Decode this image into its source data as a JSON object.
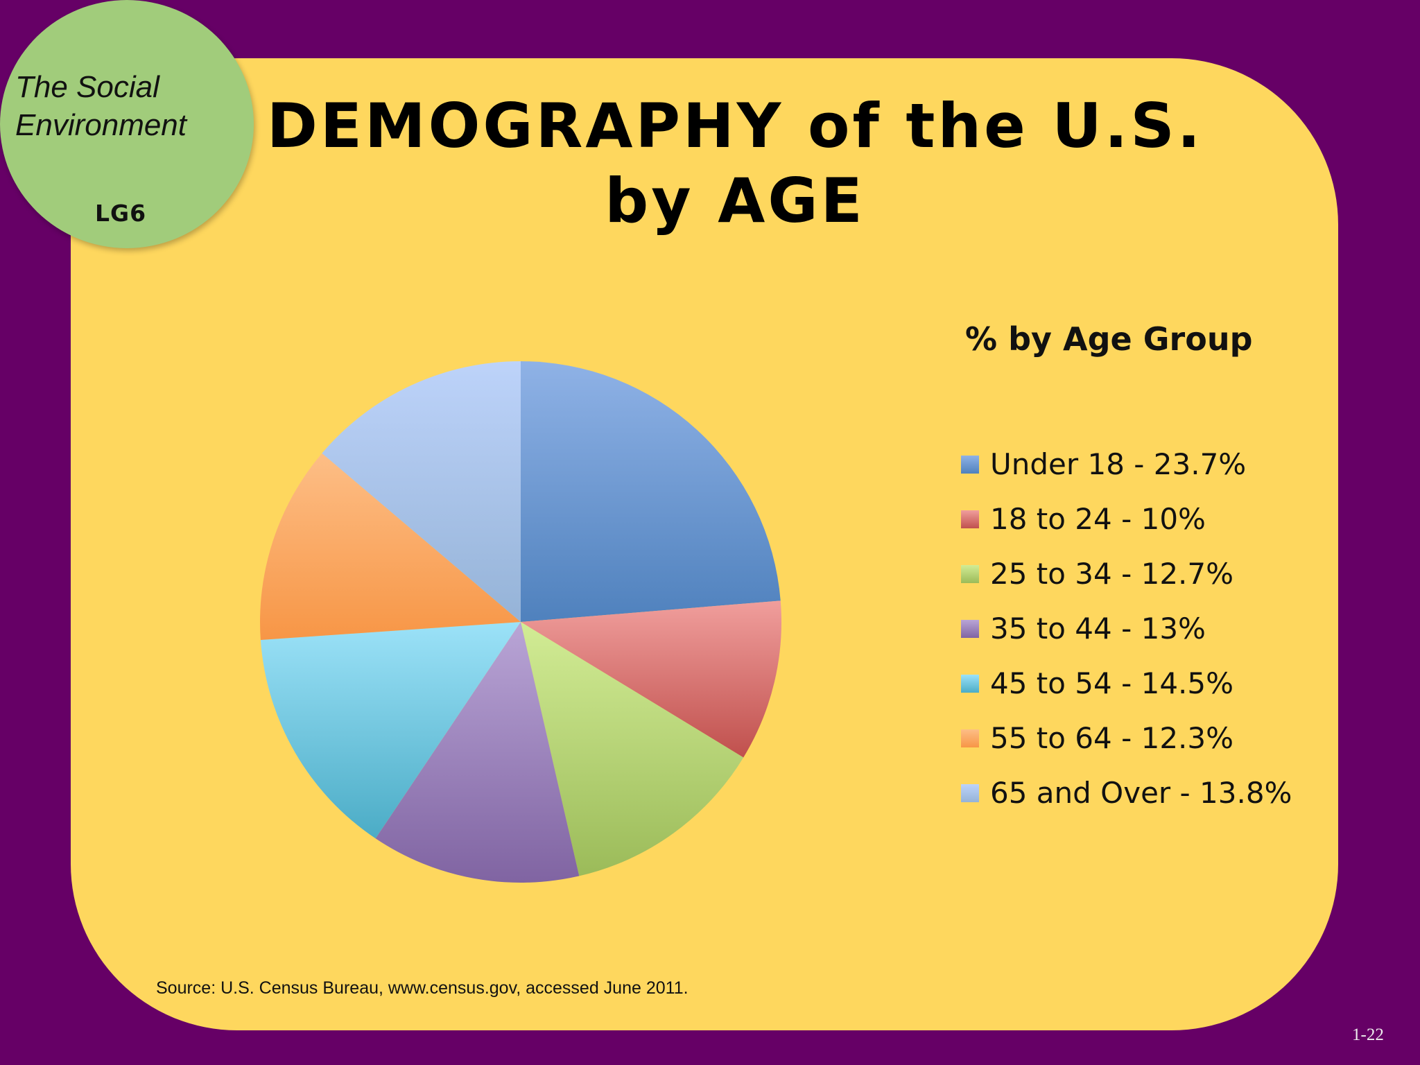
{
  "slide": {
    "title": "DEMOGRAPHY of the U.S. by AGE",
    "topic": "The Social\nEnvironment",
    "learning_goal": "LG6",
    "source": "Source: U.S. Census Bureau, www.census.gov, accessed June 2011.",
    "slide_number": "1-22"
  },
  "colors": {
    "background": "#660066",
    "panel": "#FED75E",
    "badge": "#A1CC7B"
  },
  "chart_data": {
    "type": "pie",
    "title": "% by Age Group",
    "legend_position": "right",
    "start": "12 o'clock",
    "direction": "clockwise",
    "slices": [
      {
        "label": "Under 18",
        "legend": "Under 18 - 23.7%",
        "value": 23.7,
        "color": "#4F81BD",
        "light": "#8FB2E6"
      },
      {
        "label": "18 to 24",
        "legend": "18 to 24 - 10%",
        "value": 10,
        "color": "#C0504D",
        "light": "#F09E9C"
      },
      {
        "label": "25 to 34",
        "legend": "25 to 34 - 12.7%",
        "value": 12.7,
        "color": "#9BBB59",
        "light": "#D2EC95"
      },
      {
        "label": "35 to 44",
        "legend": "35 to 44 - 13%",
        "value": 13,
        "color": "#8064A2",
        "light": "#B9A5D6"
      },
      {
        "label": "45 to 54",
        "legend": "45 to 54 - 14.5%",
        "value": 14.5,
        "color": "#4BACC6",
        "light": "#9CE2F8"
      },
      {
        "label": "55 to 64",
        "legend": "55 to 64 - 12.3%",
        "value": 12.3,
        "color": "#F79646",
        "light": "#FDBE86"
      },
      {
        "label": "65 and Over",
        "legend": "65 and Over - 13.8%",
        "value": 13.8,
        "color": "#95B3D7",
        "light": "#BDD3FA"
      }
    ]
  }
}
